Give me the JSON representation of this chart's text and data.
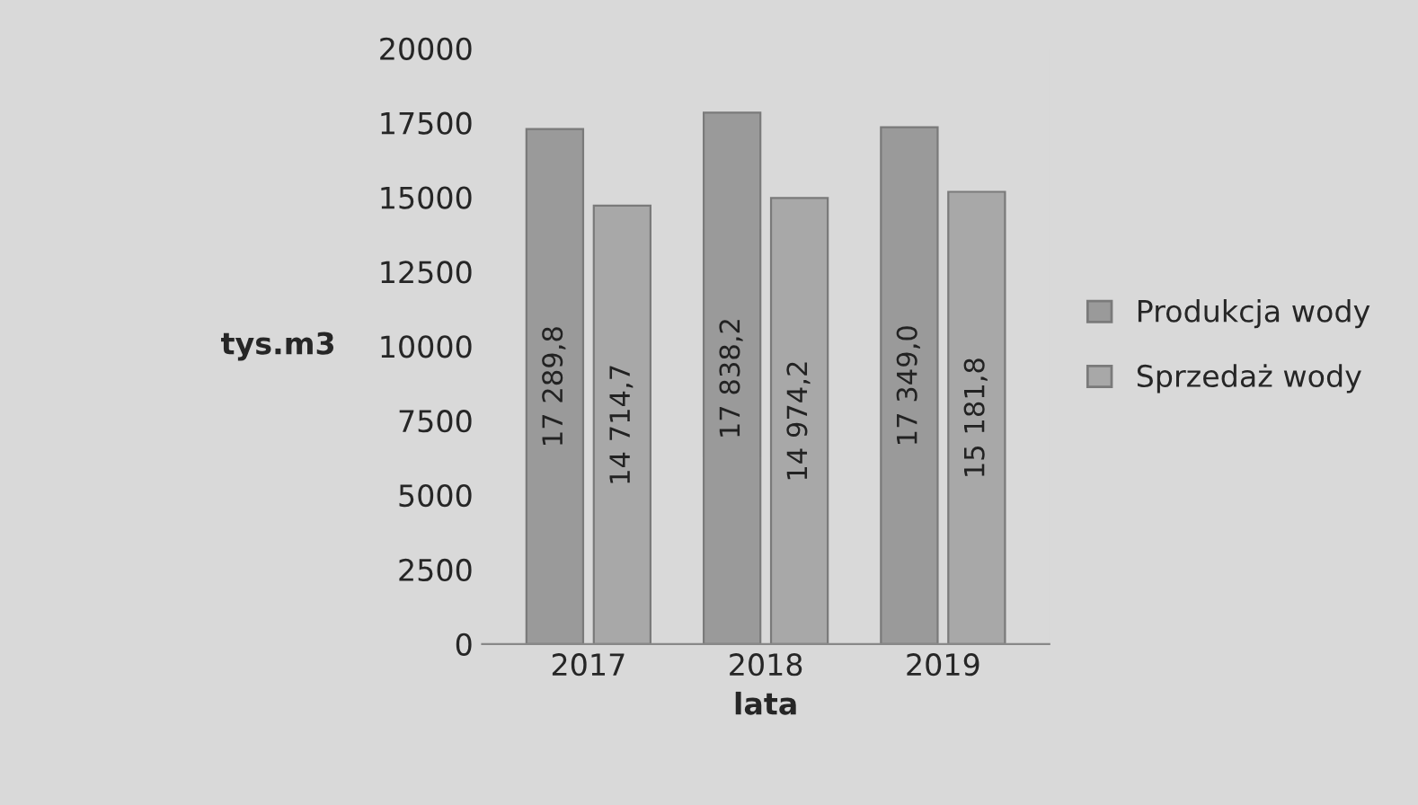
{
  "chart_data": {
    "type": "bar",
    "xlabel": "lata",
    "ylabel": "tys.m3",
    "categories": [
      "2017",
      "2018",
      "2019"
    ],
    "series": [
      {
        "name": "Produkcja wody",
        "color": "#9a9a9a",
        "values": [
          17289.8,
          17838.2,
          17349.0
        ],
        "value_labels": [
          "17 289,8",
          "17 838,2",
          "17 349,0"
        ]
      },
      {
        "name": "Sprzedaż wody",
        "color": "#a8a8a8",
        "values": [
          14714.7,
          14974.2,
          15181.8
        ],
        "value_labels": [
          "14 714,7",
          "14 974,2",
          "15 181,8"
        ]
      }
    ],
    "ylim": [
      0,
      20000
    ],
    "yticks": [
      0,
      2500,
      5000,
      7500,
      10000,
      12500,
      15000,
      17500,
      20000
    ],
    "grid": false,
    "legend": "right"
  }
}
